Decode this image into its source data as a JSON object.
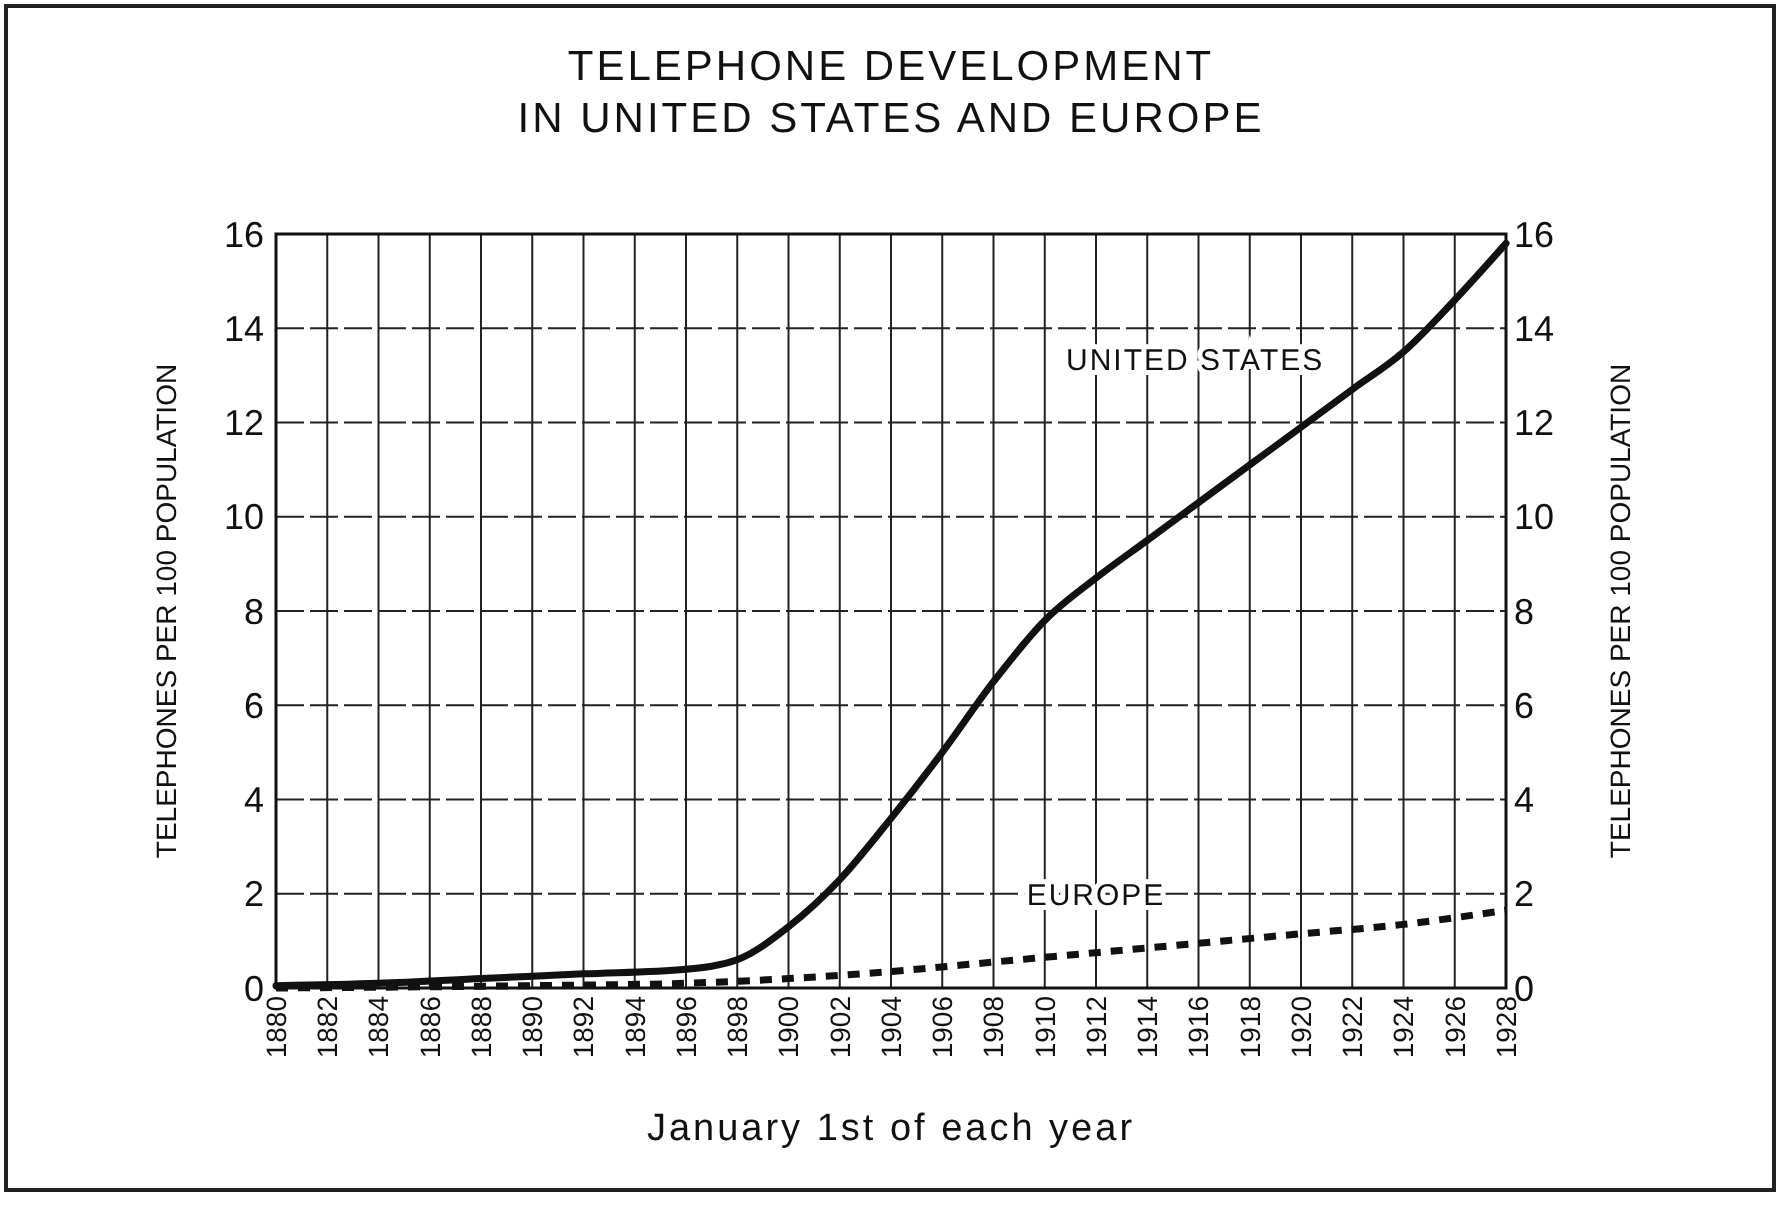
{
  "chart_data": {
    "type": "line",
    "title": "TELEPHONE DEVELOPMENT\nIN UNITED STATES AND EUROPE",
    "xlabel": "January 1st of each year",
    "ylabel": "TELEPHONES PER 100 POPULATION",
    "y2label": "TELEPHONES PER 100 POPULATION",
    "xlim": [
      1880,
      1928
    ],
    "xticks": [
      1880,
      1882,
      1884,
      1886,
      1888,
      1890,
      1892,
      1894,
      1896,
      1898,
      1900,
      1902,
      1904,
      1906,
      1908,
      1910,
      1912,
      1914,
      1916,
      1918,
      1920,
      1922,
      1924,
      1926,
      1928
    ],
    "ylim": [
      0,
      16
    ],
    "yticks": [
      0,
      2,
      4,
      6,
      8,
      10,
      12,
      14,
      16
    ],
    "y2lim": [
      0,
      16
    ],
    "y2ticks": [
      0,
      2,
      4,
      6,
      8,
      10,
      12,
      14,
      16
    ],
    "grid": true,
    "marker": "none",
    "series": [
      {
        "name": "UNITED STATES",
        "color": "#111111",
        "line_style": "solid",
        "x": [
          1880,
          1884,
          1888,
          1892,
          1896,
          1898,
          1900,
          1902,
          1904,
          1906,
          1908,
          1910,
          1912,
          1914,
          1916,
          1918,
          1920,
          1922,
          1924,
          1926,
          1928
        ],
        "values": [
          0.05,
          0.1,
          0.2,
          0.3,
          0.4,
          0.6,
          1.3,
          2.3,
          3.6,
          5.0,
          6.5,
          7.8,
          8.7,
          9.5,
          10.3,
          11.1,
          11.9,
          12.7,
          13.5,
          14.6,
          15.8
        ]
      },
      {
        "name": "EUROPE",
        "color": "#111111",
        "line_style": "dashed",
        "x": [
          1880,
          1890,
          1896,
          1900,
          1904,
          1908,
          1912,
          1916,
          1920,
          1924,
          1928
        ],
        "values": [
          0.0,
          0.05,
          0.1,
          0.2,
          0.35,
          0.55,
          0.75,
          0.95,
          1.15,
          1.35,
          1.65
        ]
      }
    ]
  }
}
